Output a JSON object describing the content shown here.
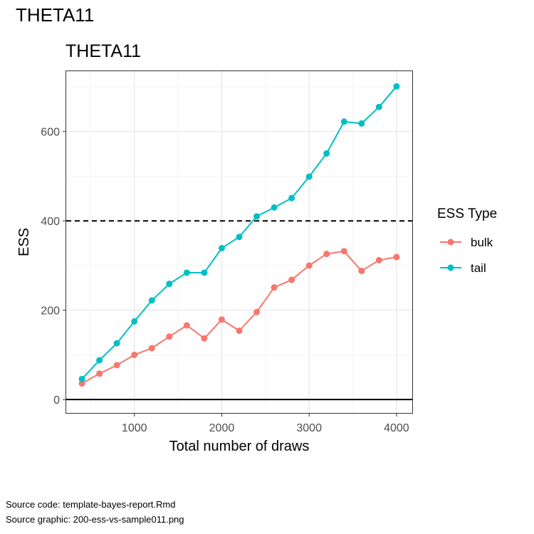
{
  "page": {
    "title": "THETA11"
  },
  "footer": {
    "source_code": "Source code: template-bayes-report.Rmd",
    "source_graphic": "Source graphic: 200-ess-vs-sample011.png"
  },
  "chart_data": {
    "type": "line",
    "title": "THETA11",
    "xlabel": "Total number of draws",
    "ylabel": "ESS",
    "x": [
      400,
      600,
      800,
      1000,
      1200,
      1400,
      1600,
      1800,
      2000,
      2200,
      2400,
      2600,
      2800,
      3000,
      3200,
      3400,
      3600,
      3800,
      4000
    ],
    "series": [
      {
        "name": "bulk",
        "color": "#F8766D",
        "values": [
          36,
          58,
          77,
          100,
          115,
          141,
          166,
          137,
          179,
          154,
          196,
          251,
          268,
          300,
          326,
          332,
          288,
          312,
          319
        ]
      },
      {
        "name": "tail",
        "color": "#00BFC4",
        "values": [
          46,
          88,
          126,
          175,
          222,
          259,
          284,
          284,
          339,
          364,
          410,
          430,
          451,
          499,
          551,
          622,
          618,
          655,
          701
        ]
      }
    ],
    "xlim": [
      220,
      4180
    ],
    "ylim": [
      -30,
      735
    ],
    "xticks": [
      1000,
      2000,
      3000,
      4000
    ],
    "yticks": [
      0,
      200,
      400,
      600
    ],
    "hline_dashed": 400,
    "hline_solid": 0,
    "grid": true,
    "legend": {
      "title": "ESS Type",
      "position": "right"
    }
  }
}
